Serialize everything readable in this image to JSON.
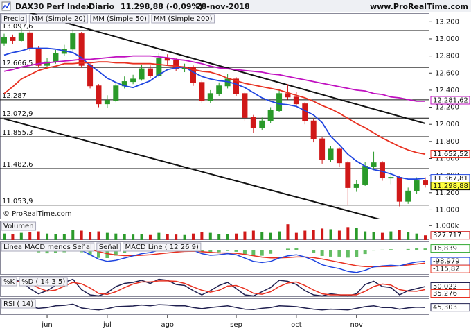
{
  "header": {
    "symbol": "DAX30 Perf Index",
    "period": "Diario",
    "price": "11.298,88 (-0,09%)",
    "date": "28-nov-2018",
    "site": "www.ProRealTime.com"
  },
  "chart_data": [
    {
      "type": "candlestick",
      "price_label": "Precio",
      "copyright": "© ProRealTime.com",
      "categories": [
        null,
        null,
        null,
        null,
        null,
        "jun",
        null,
        null,
        null,
        null,
        null,
        null,
        "jul",
        null,
        null,
        null,
        null,
        null,
        null,
        "ago",
        null,
        null,
        null,
        null,
        null,
        null,
        null,
        "sep",
        null,
        null,
        null,
        null,
        null,
        null,
        "oct",
        null,
        null,
        null,
        null,
        null,
        null,
        "nov",
        null,
        null,
        null,
        null,
        null,
        null,
        null,
        null
      ],
      "open": [
        12950,
        13020,
        12980,
        13070,
        12890,
        12690,
        12730,
        12830,
        12880,
        13060,
        12690,
        12450,
        12240,
        12280,
        12450,
        12500,
        12530,
        12650,
        12570,
        12770,
        12750,
        12650,
        12670,
        12490,
        12280,
        12360,
        12450,
        12530,
        12360,
        12080,
        11960,
        12040,
        12160,
        12360,
        12320,
        12240,
        12040,
        11830,
        11590,
        11710,
        11550,
        11260,
        11300,
        11510,
        11550,
        11380,
        11380,
        11100,
        11220,
        11340
      ],
      "high": [
        13060,
        13050,
        13120,
        13090,
        12910,
        12780,
        12870,
        12930,
        13110,
        13080,
        12710,
        12470,
        12340,
        12480,
        12560,
        12580,
        12700,
        12690,
        12830,
        12820,
        12780,
        12710,
        12690,
        12510,
        12400,
        12490,
        12590,
        12550,
        12380,
        12110,
        12080,
        12200,
        12410,
        12470,
        12380,
        12260,
        12060,
        11850,
        11750,
        11730,
        11570,
        11350,
        11560,
        11680,
        11570,
        11450,
        11400,
        11260,
        11380,
        11380
      ],
      "low": [
        12920,
        12940,
        12960,
        12860,
        12660,
        12650,
        12710,
        12800,
        12860,
        12660,
        12420,
        12200,
        12190,
        12260,
        12420,
        12470,
        12510,
        12540,
        12550,
        12700,
        12620,
        12610,
        12450,
        12250,
        12250,
        12330,
        12420,
        12330,
        12040,
        11900,
        11930,
        12010,
        12140,
        12290,
        12200,
        12000,
        11790,
        11540,
        11560,
        11500,
        11050,
        11210,
        11280,
        11470,
        11340,
        11300,
        11040,
        11070,
        11190,
        11260
      ],
      "close": [
        13020,
        12980,
        13070,
        12890,
        12690,
        12730,
        12830,
        12880,
        13060,
        12690,
        12450,
        12240,
        12280,
        12450,
        12500,
        12530,
        12650,
        12570,
        12770,
        12750,
        12650,
        12670,
        12490,
        12280,
        12360,
        12450,
        12530,
        12360,
        12080,
        11960,
        12040,
        12160,
        12360,
        12320,
        12240,
        12040,
        11830,
        11590,
        11710,
        11550,
        11260,
        11300,
        11510,
        11550,
        11380,
        11380,
        11100,
        11220,
        11340,
        11300
      ],
      "up_color": "#2a9a2a",
      "down_color": "#d01818",
      "series": [
        {
          "name": "MM (Simple 20)",
          "color": "#1f45e0",
          "values": [
            12810,
            12840,
            12860,
            12890,
            12890,
            12890,
            12880,
            12860,
            12840,
            12780,
            12690,
            12620,
            12540,
            12490,
            12450,
            12430,
            12470,
            12510,
            12580,
            12640,
            12660,
            12670,
            12610,
            12560,
            12530,
            12510,
            12500,
            12470,
            12430,
            12370,
            12310,
            12270,
            12240,
            12230,
            12210,
            12160,
            12110,
            12020,
            11860,
            11760,
            11650,
            11570,
            11510,
            11470,
            11450,
            11420,
            11380,
            11360,
            11360,
            11370
          ]
        },
        {
          "name": "MM (Simple 50)",
          "color": "#e83020",
          "values": [
            12360,
            12440,
            12530,
            12580,
            12630,
            12660,
            12680,
            12710,
            12710,
            12720,
            12720,
            12730,
            12730,
            12720,
            12720,
            12710,
            12710,
            12710,
            12700,
            12690,
            12680,
            12670,
            12640,
            12620,
            12610,
            12580,
            12540,
            12510,
            12480,
            12460,
            12440,
            12420,
            12400,
            12370,
            12340,
            12310,
            12270,
            12220,
            12180,
            12130,
            12070,
            12010,
            11960,
            11900,
            11840,
            11790,
            11740,
            11700,
            11670,
            11650
          ]
        },
        {
          "name": "MM (Simple 200)",
          "color": "#c010c0",
          "values": [
            12620,
            12640,
            12670,
            12690,
            12710,
            12720,
            12730,
            12740,
            12750,
            12760,
            12760,
            12770,
            12780,
            12790,
            12790,
            12800,
            12800,
            12800,
            12790,
            12780,
            12760,
            12750,
            12730,
            12710,
            12680,
            12660,
            12650,
            12640,
            12630,
            12620,
            12610,
            12590,
            12580,
            12560,
            12540,
            12520,
            12500,
            12480,
            12460,
            12440,
            12420,
            12400,
            12390,
            12360,
            12350,
            12320,
            12310,
            12290,
            12270,
            12270
          ]
        }
      ],
      "levels": [
        {
          "value": 13097.6,
          "label": "13.097,6"
        },
        {
          "value": 12666.5,
          "label": "12.666,5"
        },
        {
          "value": 12287,
          "label": "12.287"
        },
        {
          "value": 12072.9,
          "label": "12.072,9"
        },
        {
          "value": 11855.3,
          "label": "11.855,3"
        },
        {
          "value": 11482.6,
          "label": "11.482,6"
        },
        {
          "value": 11053.9,
          "label": "11.053,9"
        }
      ],
      "trendlines": [
        {
          "values": [
            13390,
            12010
          ]
        },
        {
          "values": [
            12064,
            10747
          ]
        }
      ],
      "badges": [
        {
          "value": 12281.62,
          "label": "12.281,62",
          "color": "#c010c0",
          "fill": "#ffffff"
        },
        {
          "value": 11652.52,
          "label": "11.652,52",
          "color": "#e83020",
          "fill": "#ffffff"
        },
        {
          "value": 11367.81,
          "label": "11.367,81",
          "color": "#1f45e0",
          "fill": "#ffffff"
        },
        {
          "value": 11298.88,
          "label": "11.298,88",
          "color": "#000000",
          "fill": "#ffff40"
        }
      ],
      "ylim": [
        10890,
        13300
      ],
      "yticks": [
        {
          "value": 11000,
          "label": "11.000"
        },
        {
          "value": 11200,
          "label": "11.200"
        },
        {
          "value": 11400,
          "label": "11.400"
        },
        {
          "value": 11600,
          "label": "11.600"
        },
        {
          "value": 11800,
          "label": "11.800"
        },
        {
          "value": 12000,
          "label": "12.000"
        },
        {
          "value": 12200,
          "label": "12.200"
        },
        {
          "value": 12400,
          "label": "12.400"
        },
        {
          "value": 12600,
          "label": "12.600"
        },
        {
          "value": 12800,
          "label": "12.800"
        },
        {
          "value": 13000,
          "label": "13.000"
        },
        {
          "value": 13200,
          "label": "13.200"
        }
      ]
    },
    {
      "type": "bar",
      "title": "Volumen",
      "values": [
        450000,
        400000,
        500000,
        550000,
        600000,
        450000,
        400000,
        420000,
        700000,
        650000,
        550000,
        600000,
        500000,
        450000,
        400000,
        380000,
        420000,
        350000,
        500000,
        400000,
        380000,
        350000,
        450000,
        550000,
        500000,
        420000,
        400000,
        450000,
        600000,
        650000,
        550000,
        500000,
        600000,
        1100000,
        500000,
        650000,
        700000,
        800000,
        750000,
        650000,
        900000,
        850000,
        600000,
        550000,
        500000,
        600000,
        700000,
        550000,
        450000,
        327717
      ],
      "badges": [
        {
          "value": 327717,
          "label": "327.717",
          "color": "#d01818",
          "fill": "#ffffff"
        }
      ],
      "ylim": [
        0,
        1350000
      ],
      "yticks": [
        {
          "value": 1000000,
          "label": "1.000k"
        }
      ]
    },
    {
      "type": "line",
      "series": [
        {
          "name": "Línea MACD menos Señal",
          "color": "#30a830",
          "histogram": true,
          "values": [
            10,
            15,
            15,
            3,
            -18,
            -27,
            -26,
            -17,
            -1,
            -17,
            -46,
            -68,
            -70,
            -48,
            -22,
            -2,
            15,
            20,
            32,
            34,
            31,
            25,
            8,
            -18,
            -26,
            -17,
            -6,
            -13,
            -34,
            -51,
            -49,
            -31,
            -1,
            15,
            20,
            0,
            -24,
            -51,
            -57,
            -57,
            -66,
            -61,
            -33,
            -2,
            6,
            10,
            0,
            12,
            19,
            16.839
          ]
        },
        {
          "name": "Señal",
          "color": "#e83020",
          "values": [
            30,
            35,
            40,
            42,
            38,
            32,
            26,
            22,
            21,
            17,
            6,
            -12,
            -30,
            -42,
            -48,
            -48,
            -45,
            -40,
            -32,
            -24,
            -16,
            -10,
            -8,
            -12,
            -19,
            -23,
            -24,
            -27,
            -36,
            -49,
            -61,
            -69,
            -69,
            -65,
            -60,
            -60,
            -66,
            -79,
            -93,
            -108,
            -124,
            -139,
            -147,
            -148,
            -146,
            -145,
            -140,
            -132,
            -124,
            -115.82
          ]
        },
        {
          "name": "MACD Line ( 12 26 9)",
          "color": "#1f45e0",
          "values": [
            40,
            50,
            55,
            45,
            20,
            5,
            0,
            5,
            20,
            0,
            -40,
            -80,
            -100,
            -90,
            -70,
            -50,
            -30,
            -20,
            0,
            10,
            15,
            15,
            0,
            -30,
            -45,
            -40,
            -30,
            -40,
            -70,
            -100,
            -110,
            -100,
            -70,
            -50,
            -40,
            -60,
            -90,
            -130,
            -150,
            -165,
            -190,
            -200,
            -180,
            -150,
            -140,
            -135,
            -140,
            -120,
            -105,
            -98.979
          ]
        }
      ],
      "badges": [
        {
          "value": 16.839,
          "label": "16,839",
          "color": "#30a830",
          "fill": "#ffffff"
        },
        {
          "value": -98.979,
          "label": "-98,979",
          "color": "#1f45e0",
          "fill": "#ffffff"
        },
        {
          "value": -115.82,
          "label": "-115,82",
          "color": "#e83020",
          "fill": "#ffffff"
        }
      ],
      "ylim": [
        -220,
        80
      ]
    },
    {
      "type": "line",
      "series": [
        {
          "name": "%K",
          "color": "#202050",
          "values": [
            70,
            80,
            75,
            40,
            15,
            30,
            55,
            70,
            85,
            35,
            10,
            5,
            20,
            50,
            65,
            70,
            80,
            65,
            85,
            80,
            60,
            55,
            30,
            10,
            30,
            55,
            70,
            40,
            10,
            5,
            25,
            45,
            80,
            75,
            60,
            30,
            10,
            5,
            15,
            10,
            5,
            15,
            60,
            75,
            50,
            45,
            10,
            30,
            40,
            50.022
          ]
        },
        {
          "name": "%D ( 14 3 5)",
          "color": "#e83020",
          "values": [
            60,
            70,
            75,
            65,
            43,
            28,
            33,
            52,
            70,
            63,
            43,
            17,
            12,
            25,
            45,
            62,
            72,
            72,
            77,
            77,
            75,
            65,
            48,
            32,
            23,
            32,
            52,
            55,
            40,
            18,
            13,
            25,
            50,
            67,
            72,
            55,
            33,
            15,
            10,
            10,
            10,
            10,
            27,
            50,
            62,
            57,
            35,
            28,
            27,
            35.276
          ]
        }
      ],
      "badges": [
        {
          "value": 50.022,
          "label": "50,022",
          "color": "#202050",
          "fill": "#ffffff"
        },
        {
          "value": 35.276,
          "label": "35,276",
          "color": "#e83020",
          "fill": "#ffffff"
        }
      ],
      "ylim": [
        0,
        100
      ]
    },
    {
      "type": "line",
      "series": [
        {
          "name": "RSI ( 14)",
          "color": "#202050",
          "values": [
            60,
            62,
            64,
            50,
            40,
            45,
            55,
            58,
            65,
            42,
            35,
            30,
            38,
            50,
            52,
            54,
            60,
            55,
            62,
            60,
            55,
            56,
            45,
            38,
            45,
            50,
            55,
            45,
            35,
            32,
            40,
            45,
            55,
            53,
            50,
            42,
            35,
            30,
            35,
            33,
            30,
            40,
            50,
            55,
            45,
            45,
            35,
            43,
            47,
            45.303
          ]
        }
      ],
      "badges": [
        {
          "value": 45.303,
          "label": "45,303",
          "color": "#202050",
          "fill": "#ffffff"
        }
      ],
      "ylim": [
        0,
        100
      ]
    }
  ]
}
